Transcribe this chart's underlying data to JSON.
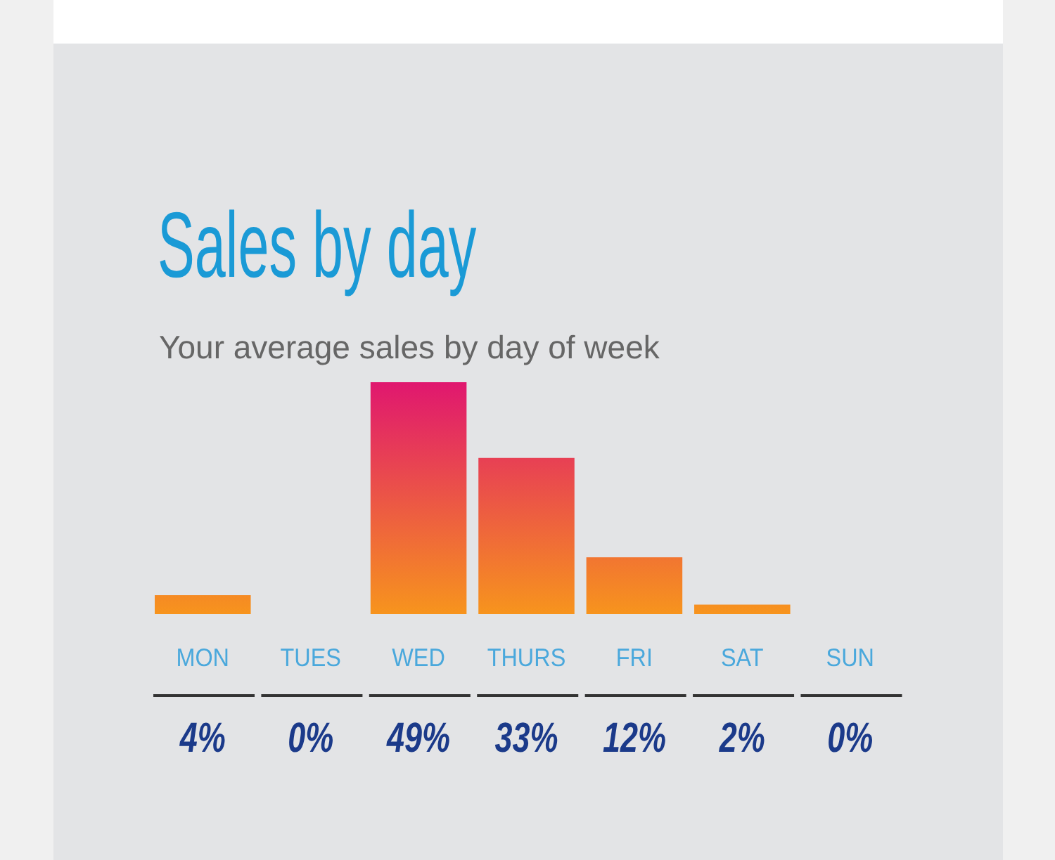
{
  "chart_data": {
    "type": "bar",
    "title": "Sales by day",
    "subtitle": "Your average sales by day of week",
    "categories": [
      "MON",
      "TUES",
      "WED",
      "THURS",
      "FRI",
      "SAT",
      "SUN"
    ],
    "values": [
      4,
      0,
      49,
      33,
      12,
      2,
      0
    ],
    "value_labels": [
      "4%",
      "0%",
      "49%",
      "33%",
      "12%",
      "2%",
      "0%"
    ],
    "color": "#f7941d"
  }
}
